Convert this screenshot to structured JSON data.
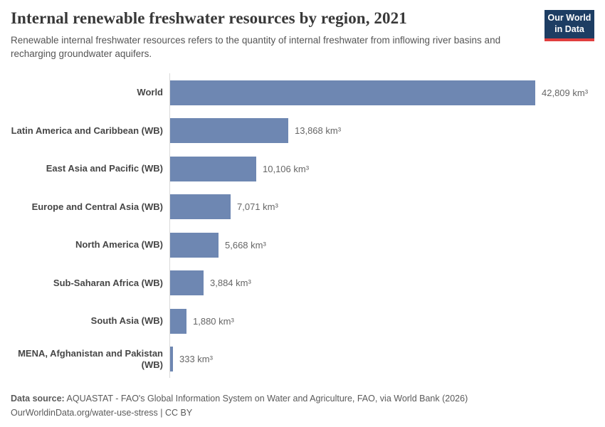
{
  "header": {
    "title": "Internal renewable freshwater resources by region, 2021",
    "subtitle": "Renewable internal freshwater resources refers to the quantity of internal freshwater from inflowing river basins and recharging groundwater aquifers.",
    "logo": {
      "line1": "Our World",
      "line2": "in Data",
      "background_color": "#1d3d63",
      "stripe_color": "#e03e3e"
    }
  },
  "chart_data": {
    "type": "bar",
    "orientation": "horizontal",
    "title": "Internal renewable freshwater resources by region, 2021",
    "unit": "km³",
    "xlim": [
      0,
      42809
    ],
    "grid": false,
    "bar_color": "#6e87b2",
    "categories": [
      "World",
      "Latin America and Caribbean (WB)",
      "East Asia and Pacific (WB)",
      "Europe and Central Asia (WB)",
      "North America (WB)",
      "Sub-Saharan Africa (WB)",
      "South Asia (WB)",
      "MENA, Afghanistan and Pakistan (WB)"
    ],
    "values": [
      42809,
      13868,
      10106,
      7071,
      5668,
      3884,
      1880,
      333
    ],
    "value_labels": [
      "42,809 km³",
      "13,868 km³",
      "10,106 km³",
      "7,071 km³",
      "5,668 km³",
      "3,884 km³",
      "1,880 km³",
      "333 km³"
    ]
  },
  "footer": {
    "source_label": "Data source:",
    "source_text": " AQUASTAT - FAO's Global Information System on Water and Agriculture, FAO, via World Bank (2026)",
    "license_line": "OurWorldinData.org/water-use-stress | CC BY"
  }
}
